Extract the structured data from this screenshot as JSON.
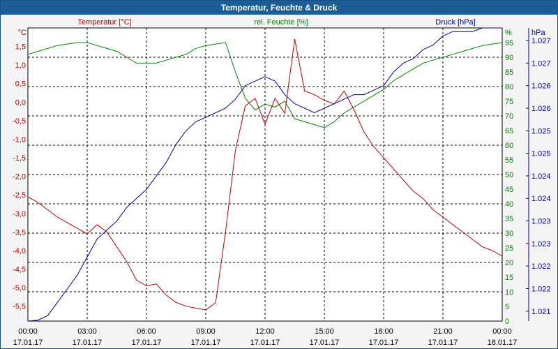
{
  "window": {
    "title": "Temperatur, Feuchte & Druck"
  },
  "colors": {
    "temperature": "#c00000",
    "humidity": "#008000",
    "pressure": "#0000a0",
    "grid": "#000000",
    "plot_background": "#ffffff"
  },
  "chart_data": {
    "type": "line",
    "title": "Temperatur, Feuchte & Druck",
    "grid": true,
    "x_ticks": [
      {
        "time": "00:00",
        "date": "17.01.17"
      },
      {
        "time": "03:00",
        "date": "17.01.17"
      },
      {
        "time": "06:00",
        "date": "17.01.17"
      },
      {
        "time": "09:00",
        "date": "17.01.17"
      },
      {
        "time": "12:00",
        "date": "17.01.17"
      },
      {
        "time": "15:00",
        "date": "17.01.17"
      },
      {
        "time": "18:00",
        "date": "17.01.17"
      },
      {
        "time": "21:00",
        "date": "17.01.17"
      },
      {
        "time": "00:00",
        "date": "18.01.17"
      }
    ],
    "x_hours": [
      0,
      0.5,
      1,
      1.5,
      2,
      2.5,
      3,
      3.5,
      4,
      4.5,
      5,
      5.5,
      6,
      6.5,
      7,
      7.5,
      8,
      8.5,
      9,
      9.5,
      10,
      10.5,
      11,
      11.5,
      12,
      12.5,
      13,
      13.5,
      14,
      14.5,
      15,
      15.5,
      16,
      16.5,
      17,
      17.5,
      18,
      18.5,
      19,
      19.5,
      20,
      20.5,
      21,
      21.5,
      22,
      22.5,
      23,
      23.5,
      24
    ],
    "axes": {
      "left": {
        "label": "Temperatur [°C]",
        "unit": "°C",
        "range": [
          -5.9,
          2.0
        ],
        "ticks": [
          "1,5",
          "1,0",
          "0,5",
          "0,0",
          "-0,5",
          "-1,0",
          "-1,5",
          "-2,0",
          "-2,5",
          "-3,0",
          "-3,5",
          "-4,0",
          "-4,5",
          "-5,0",
          "-5,5"
        ],
        "tick_values": [
          1.5,
          1.0,
          0.5,
          0.0,
          -0.5,
          -1.0,
          -1.5,
          -2.0,
          -2.5,
          -3.0,
          -3.5,
          -4.0,
          -4.5,
          -5.0,
          -5.5
        ]
      },
      "mid": {
        "label": "rel. Feuchte [%]",
        "unit": "%",
        "range": [
          0,
          100
        ],
        "ticks": [
          "95",
          "90",
          "85",
          "80",
          "75",
          "70",
          "65",
          "60",
          "55",
          "50",
          "45",
          "40",
          "35",
          "30",
          "25",
          "20",
          "15",
          "10",
          "5",
          "0"
        ],
        "tick_values": [
          95,
          90,
          85,
          80,
          75,
          70,
          65,
          60,
          55,
          50,
          45,
          40,
          35,
          30,
          25,
          20,
          15,
          10,
          5,
          0
        ]
      },
      "right": {
        "label": "Druck [hPa]",
        "unit": "hPa",
        "range": [
          1020.78,
          1027.28
        ],
        "ticks": [
          "1.027",
          "1.027",
          "1.026",
          "1.026",
          "1.025",
          "1.025",
          "1.024",
          "1.024",
          "1.023",
          "1.023",
          "1.022",
          "1.022",
          "1.021",
          "1.021"
        ],
        "tick_values": [
          1027.0,
          1026.5,
          1026.0,
          1025.5,
          1025.0,
          1024.5,
          1024.0,
          1023.5,
          1023.0,
          1022.5,
          1022.0,
          1021.5,
          1021.0,
          1020.5
        ]
      }
    },
    "series": [
      {
        "name": "Temperatur [°C]",
        "axis": "left",
        "color": "#c00000",
        "values": [
          -2.55,
          -2.7,
          -2.9,
          -3.1,
          -3.25,
          -3.4,
          -3.55,
          -3.3,
          -3.5,
          -3.9,
          -4.3,
          -4.8,
          -4.95,
          -4.9,
          -5.2,
          -5.4,
          -5.5,
          -5.55,
          -5.6,
          -5.4,
          -3.5,
          -1.3,
          -0.1,
          0.1,
          -0.6,
          0.1,
          -0.3,
          1.7,
          0.3,
          0.2,
          0.05,
          -0.05,
          0.3,
          -0.2,
          -0.8,
          -1.2,
          -1.5,
          -1.8,
          -2.1,
          -2.4,
          -2.6,
          -2.9,
          -3.1,
          -3.3,
          -3.5,
          -3.7,
          -3.9,
          -4.0,
          -4.15
        ]
      },
      {
        "name": "rel. Feuchte [%]",
        "axis": "mid",
        "color": "#008000",
        "values": [
          91,
          92,
          93,
          94,
          94.5,
          95,
          95,
          94,
          93,
          92,
          90,
          88,
          88,
          88,
          89,
          90,
          91,
          93,
          94,
          94.5,
          95,
          85,
          76,
          72,
          74,
          73,
          75,
          69,
          68,
          67,
          66,
          68,
          71,
          73,
          75,
          77,
          79,
          82,
          84,
          86,
          88,
          89,
          90,
          91,
          92,
          93,
          94,
          94.5,
          95
        ]
      },
      {
        "name": "Druck [hPa]",
        "axis": "right",
        "color": "#0000a0",
        "values": [
          1020.6,
          1020.8,
          1020.9,
          1021.2,
          1021.5,
          1021.8,
          1022.2,
          1022.6,
          1022.8,
          1023.0,
          1023.3,
          1023.5,
          1023.7,
          1024.0,
          1024.3,
          1024.7,
          1025.0,
          1025.2,
          1025.3,
          1025.4,
          1025.5,
          1025.7,
          1026.0,
          1026.1,
          1026.2,
          1026.1,
          1025.8,
          1025.6,
          1025.5,
          1025.4,
          1025.5,
          1025.6,
          1025.7,
          1025.8,
          1025.8,
          1025.9,
          1026.0,
          1026.3,
          1026.5,
          1026.6,
          1026.8,
          1026.9,
          1027.1,
          1027.2,
          1027.2,
          1027.2,
          1027.3,
          1027.3,
          1027.4
        ]
      }
    ]
  }
}
